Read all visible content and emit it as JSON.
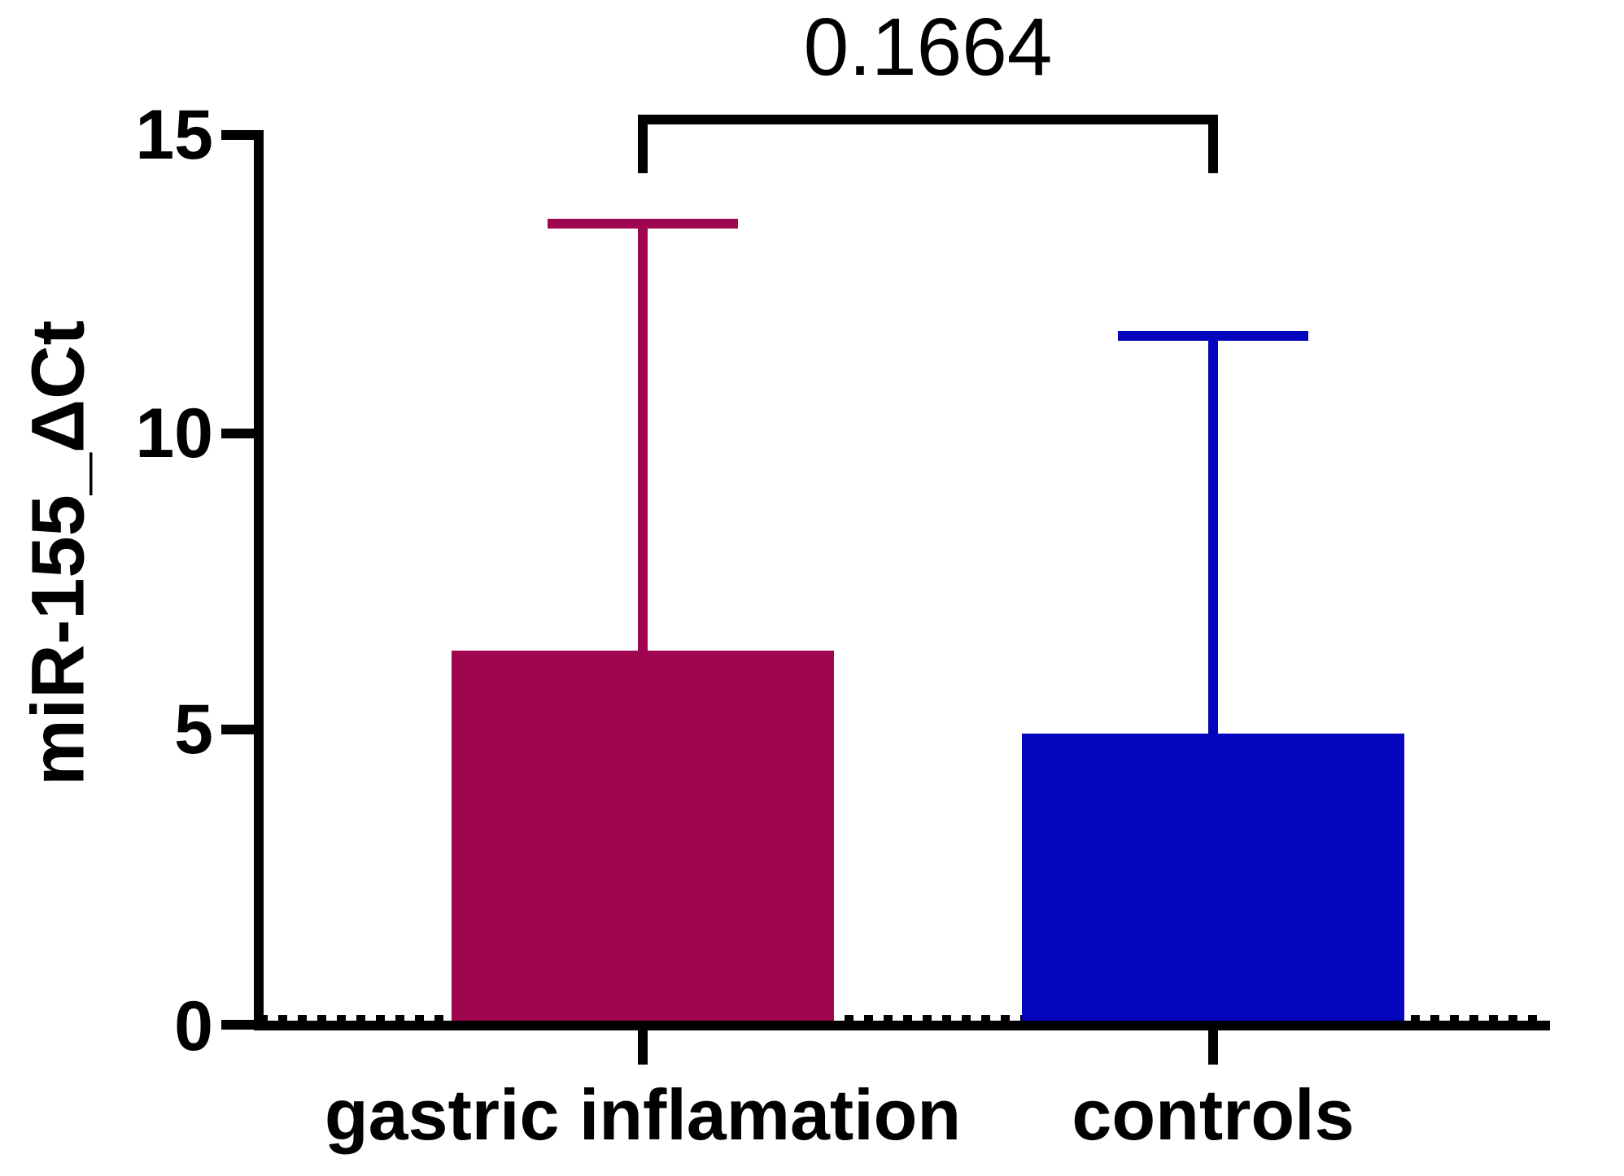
{
  "figure": {
    "p_value": "0.1664",
    "y_axis": {
      "label": "miR-155_ΔCt",
      "tick_labels": [
        "15",
        "10",
        "5",
        "0"
      ]
    },
    "x_axis": {
      "tick_labels": [
        "gastric inflamation",
        "controls"
      ]
    }
  },
  "chart_data": {
    "type": "bar",
    "title": "",
    "xlabel": "",
    "ylabel": "miR-155_ΔCt",
    "categories": [
      "gastric inflamation",
      "controls"
    ],
    "values": [
      6.3,
      4.9
    ],
    "errors_sd_upper": [
      7.2,
      6.7
    ],
    "error_bar_tops": [
      13.5,
      11.6
    ],
    "bar_colors": [
      "#A00550",
      "#0505BE"
    ],
    "ylim": [
      0,
      15
    ],
    "yticks": [
      0,
      5,
      10,
      15
    ],
    "grid": "off",
    "legend": "none",
    "zero_line_style": "dotted",
    "significance_bracket": {
      "groups": [
        "gastric inflamation",
        "controls"
      ],
      "label": "0.1664"
    }
  }
}
